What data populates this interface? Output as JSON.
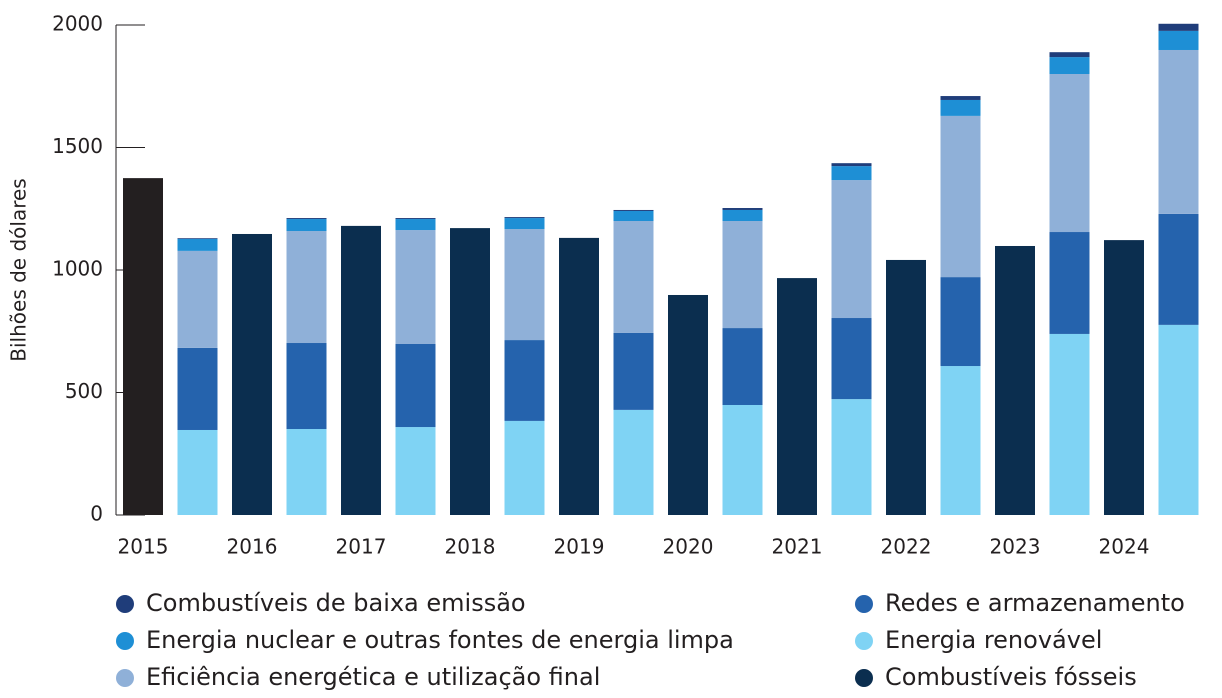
{
  "chart_data": {
    "type": "stacked_bar",
    "y_label": "Bilhões de dólares",
    "categories": [
      "2015",
      null,
      "2016",
      null,
      "2017",
      null,
      "2018",
      null,
      "2019",
      null,
      "2020",
      null,
      "2021",
      null,
      "2022",
      null,
      "2023",
      null,
      "2024",
      null
    ],
    "series": [
      {
        "name": "Combustíveis de baixa emissão",
        "color": "#1f3d7a",
        "values": [
          null,
          3,
          null,
          4,
          null,
          4,
          null,
          4,
          null,
          4,
          null,
          8,
          null,
          12,
          null,
          16,
          null,
          20,
          null,
          29
        ]
      },
      {
        "name": "Energia nuclear e outras fontes de energia limpa",
        "color": "#1e8fd5",
        "values": [
          null,
          49,
          null,
          49,
          null,
          45,
          null,
          45,
          null,
          41,
          null,
          45,
          null,
          57,
          null,
          65,
          null,
          69,
          null,
          78
        ]
      },
      {
        "name": "Eficiência energética e utilização final",
        "color": "#8fb0d8",
        "values": [
          null,
          396,
          null,
          457,
          null,
          465,
          null,
          453,
          null,
          457,
          null,
          437,
          null,
          563,
          null,
          658,
          null,
          645,
          null,
          669
        ]
      },
      {
        "name": "Redes e armazenamento",
        "color": "#2563ad",
        "values": [
          null,
          335,
          null,
          351,
          null,
          339,
          null,
          330,
          null,
          314,
          null,
          314,
          null,
          331,
          null,
          363,
          null,
          416,
          null,
          453
        ]
      },
      {
        "name": "Energia renovável",
        "color": "#7fd3f4",
        "values": [
          null,
          347,
          null,
          351,
          null,
          359,
          null,
          384,
          null,
          429,
          null,
          449,
          null,
          473,
          null,
          608,
          null,
          739,
          null,
          776
        ]
      },
      {
        "name": "Combustíveis fósseis",
        "color": "#0b2e4f",
        "colors": [
          "#231f20",
          null,
          "#0b2e4f",
          null,
          "#0b2e4f",
          null,
          "#0b2e4f",
          null,
          "#0b2e4f",
          null,
          "#0b2e4f",
          null,
          "#0b2e4f",
          null,
          "#0b2e4f",
          null,
          "#0b2e4f",
          null,
          "#0b2e4f",
          null
        ],
        "values": [
          1375,
          null,
          1147,
          null,
          1180,
          null,
          1171,
          null,
          1131,
          null,
          898,
          null,
          967,
          null,
          1041,
          null,
          1098,
          null,
          1122,
          null
        ]
      }
    ],
    "ylim": [
      0,
      2000
    ],
    "yticks": [
      0,
      500,
      1000,
      1500,
      2000
    ]
  }
}
